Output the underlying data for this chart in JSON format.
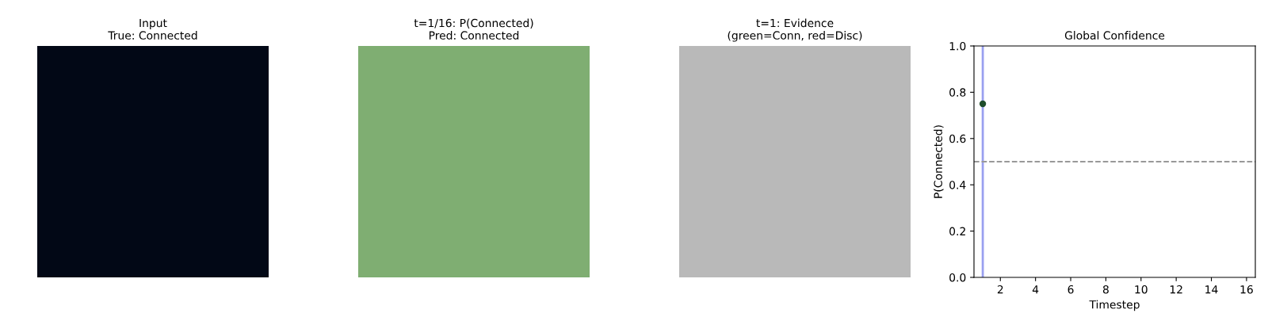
{
  "chart_data": [
    {
      "type": "other",
      "title": "Input\nTrue: Connected",
      "color": "#020816"
    },
    {
      "type": "other",
      "title": "t=1/16: P(Connected)\nPred: Connected",
      "color": "#7fae72"
    },
    {
      "type": "other",
      "title": "t=1: Evidence\n(green=Conn, red=Disc)",
      "color": "#b9b9b9"
    },
    {
      "type": "scatter",
      "title": "Global Confidence",
      "xlabel": "Timestep",
      "ylabel": "P(Connected)",
      "x": [
        1
      ],
      "values": [
        0.75
      ],
      "color": "#1f4d2b",
      "marker": "circle",
      "xlim": [
        0.5,
        16.5
      ],
      "xticks": [
        2,
        4,
        6,
        8,
        10,
        12,
        14,
        16
      ],
      "ylim": [
        0,
        1
      ],
      "yticks": [
        {
          "value": 0,
          "label": "0.0"
        },
        {
          "value": 0.2,
          "label": "0.2"
        },
        {
          "value": 0.4,
          "label": "0.4"
        },
        {
          "value": 0.6,
          "label": "0.6"
        },
        {
          "value": 0.8,
          "label": "0.8"
        },
        {
          "value": 1,
          "label": "1.0"
        }
      ],
      "ref_lines": [
        {
          "axis": "x",
          "value": 1,
          "color": "#9aa0f0",
          "line_style": "solid"
        },
        {
          "axis": "y",
          "value": 0.5,
          "color": "#999999",
          "line_style": "dashed"
        }
      ],
      "grid": false
    }
  ]
}
